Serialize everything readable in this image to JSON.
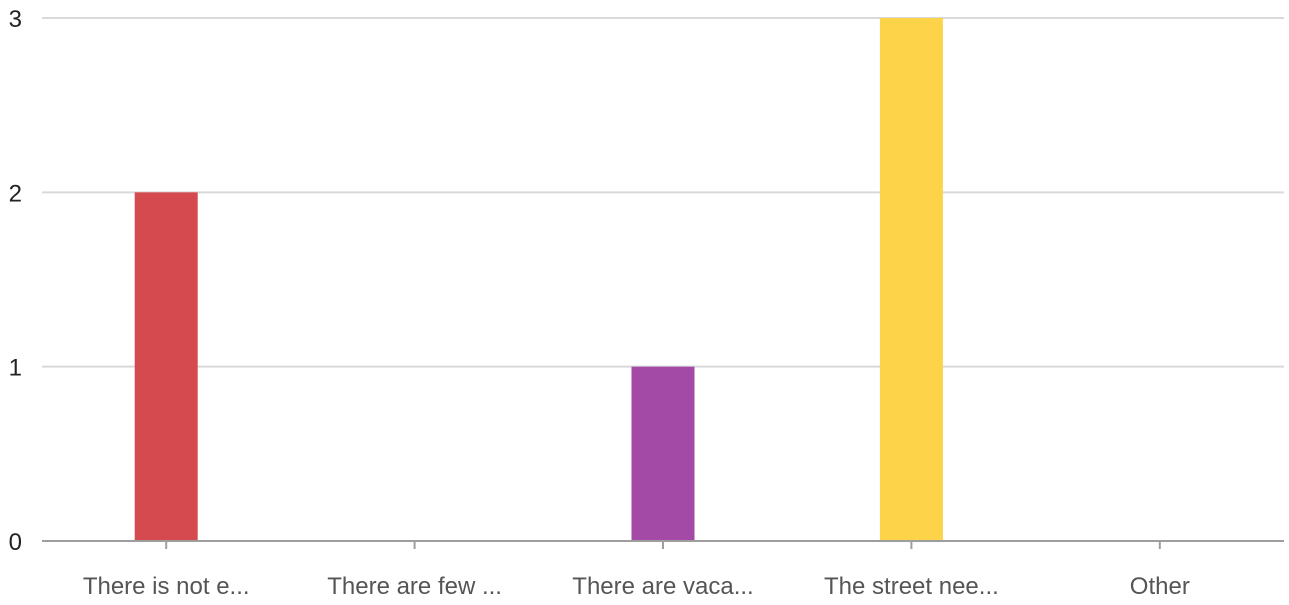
{
  "chart_data": {
    "type": "bar",
    "categories": [
      "There is not e...",
      "There are few ...",
      "There are vaca...",
      "The street nee...",
      "Other"
    ],
    "values": [
      2,
      0,
      1,
      3,
      0
    ],
    "colors": [
      "#d44a4e",
      "#c1c1c1",
      "#a24aa5",
      "#fdd34a",
      "#c1c1c1"
    ],
    "yticks": [
      "0",
      "1",
      "2",
      "3"
    ],
    "ylim": [
      0,
      3
    ],
    "grid": true,
    "legend": "none"
  }
}
